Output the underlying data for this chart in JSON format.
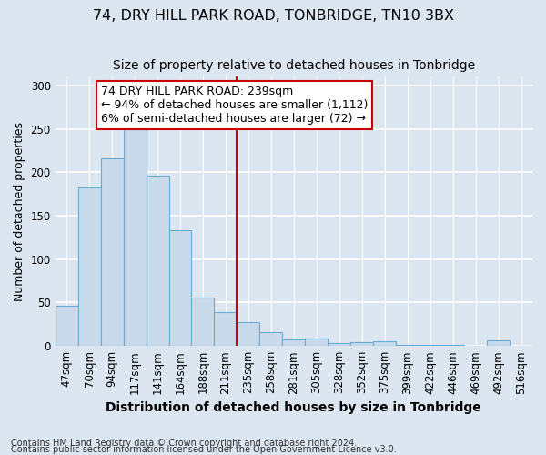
{
  "title": "74, DRY HILL PARK ROAD, TONBRIDGE, TN10 3BX",
  "subtitle": "Size of property relative to detached houses in Tonbridge",
  "xlabel": "Distribution of detached houses by size in Tonbridge",
  "ylabel": "Number of detached properties",
  "footnote1": "Contains HM Land Registry data © Crown copyright and database right 2024.",
  "footnote2": "Contains public sector information licensed under the Open Government Licence v3.0.",
  "categories": [
    "47sqm",
    "70sqm",
    "94sqm",
    "117sqm",
    "141sqm",
    "164sqm",
    "188sqm",
    "211sqm",
    "235sqm",
    "258sqm",
    "281sqm",
    "305sqm",
    "328sqm",
    "352sqm",
    "375sqm",
    "399sqm",
    "422sqm",
    "446sqm",
    "469sqm",
    "492sqm",
    "516sqm"
  ],
  "values": [
    46,
    183,
    216,
    250,
    196,
    133,
    56,
    39,
    27,
    16,
    8,
    9,
    3,
    4,
    5,
    1,
    1,
    1,
    0,
    6,
    0
  ],
  "bar_color": "#c8daea",
  "bar_edge_color": "#6aaad4",
  "vline_color": "#cc0000",
  "annotation_text": "74 DRY HILL PARK ROAD: 239sqm\n← 94% of detached houses are smaller (1,112)\n6% of semi-detached houses are larger (72) →",
  "annotation_box_color": "white",
  "annotation_box_edge_color": "#cc0000",
  "ylim": [
    0,
    310
  ],
  "yticks": [
    0,
    50,
    100,
    150,
    200,
    250,
    300
  ],
  "background_color": "#dce6f0",
  "plot_bg_color": "#dce6f0",
  "grid_color": "white",
  "title_fontsize": 11.5,
  "subtitle_fontsize": 10,
  "xlabel_fontsize": 10,
  "ylabel_fontsize": 9,
  "tick_fontsize": 8.5,
  "annotation_fontsize": 9,
  "footnote_fontsize": 7
}
